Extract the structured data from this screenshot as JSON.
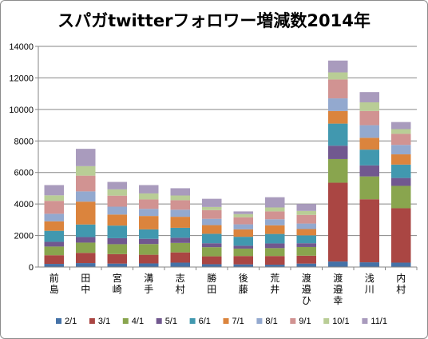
{
  "chart_data": {
    "type": "bar",
    "stacked": true,
    "title": "スパガtwitterフォロワー増減数2014年",
    "ylim": [
      0,
      14000
    ],
    "y_ticks": [
      0,
      2000,
      4000,
      6000,
      8000,
      10000,
      12000,
      14000
    ],
    "y_tick_labels": [
      "0",
      "2000",
      "4000",
      "6000",
      "8000",
      "10000",
      "12000",
      "14000"
    ],
    "grid": true,
    "legend_position": "bottom",
    "categories": [
      "前島",
      "田中",
      "宮崎",
      "溝手",
      "志村",
      "勝田",
      "後藤",
      "荒井",
      "渡邉ひ",
      "渡邉幸",
      "浅川",
      "内村"
    ],
    "series": [
      {
        "name": "2/1",
        "color": "#4572a7",
        "values": [
          200,
          250,
          220,
          230,
          280,
          180,
          170,
          150,
          220,
          350,
          300,
          280
        ]
      },
      {
        "name": "3/1",
        "color": "#aa4643",
        "values": [
          550,
          650,
          600,
          550,
          650,
          500,
          530,
          550,
          500,
          5000,
          4000,
          3450
        ]
      },
      {
        "name": "4/1",
        "color": "#89a54e",
        "values": [
          550,
          650,
          630,
          680,
          600,
          580,
          470,
          500,
          550,
          1500,
          1450,
          1420
        ]
      },
      {
        "name": "5/1",
        "color": "#71588f",
        "values": [
          300,
          350,
          380,
          330,
          330,
          250,
          180,
          300,
          240,
          850,
          700,
          500
        ]
      },
      {
        "name": "6/1",
        "color": "#4198af",
        "values": [
          700,
          800,
          800,
          600,
          630,
          600,
          570,
          600,
          500,
          1400,
          1000,
          850
        ]
      },
      {
        "name": "7/1",
        "color": "#db843d",
        "values": [
          600,
          1450,
          700,
          850,
          700,
          550,
          470,
          550,
          400,
          800,
          750,
          650
        ]
      },
      {
        "name": "8/1",
        "color": "#93a9cf",
        "values": [
          480,
          650,
          500,
          450,
          450,
          400,
          320,
          380,
          350,
          800,
          800,
          600
        ]
      },
      {
        "name": "9/1",
        "color": "#d19392",
        "values": [
          820,
          1000,
          700,
          600,
          600,
          550,
          450,
          500,
          550,
          1200,
          900,
          700
        ]
      },
      {
        "name": "10/1",
        "color": "#b9cd96",
        "values": [
          350,
          600,
          400,
          380,
          300,
          200,
          200,
          250,
          250,
          450,
          550,
          300
        ]
      },
      {
        "name": "11/1",
        "color": "#a99bbd",
        "values": [
          650,
          1100,
          470,
          530,
          460,
          520,
          170,
          650,
          440,
          750,
          650,
          450
        ]
      }
    ]
  }
}
